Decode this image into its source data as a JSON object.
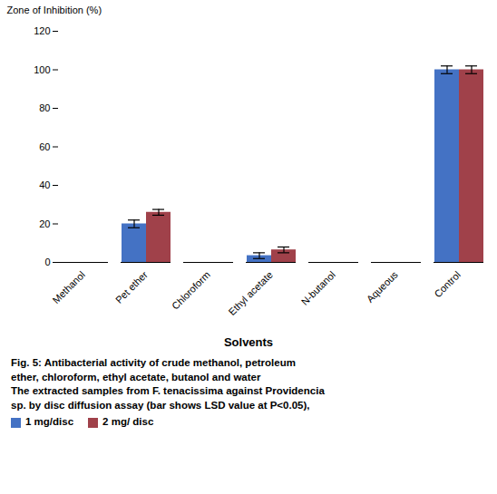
{
  "chart_data": {
    "type": "bar",
    "categories": [
      "Methanol",
      "Pet ether",
      "Chloroform",
      "Ethyl acetate",
      "N-butanol",
      "Aqueous",
      "Control"
    ],
    "series": [
      {
        "name": "1 mg/disc",
        "color": "#4472C4",
        "values": [
          0,
          20,
          0,
          3.5,
          0,
          0,
          100
        ],
        "errors": [
          0,
          2.0,
          0,
          1.5,
          0,
          0,
          2.0
        ]
      },
      {
        "name": "2 mg/ disc",
        "color": "#A0414A",
        "values": [
          0,
          26,
          0,
          6.5,
          0,
          0,
          100
        ],
        "errors": [
          0,
          1.5,
          0,
          1.5,
          0,
          0,
          2.0
        ]
      }
    ],
    "xlabel": "Solvents",
    "ylabel": "Zone of Inhibition (%)",
    "ylim": [
      0,
      120
    ],
    "yticks": [
      0,
      20,
      40,
      60,
      80,
      100,
      120
    ],
    "grid": false,
    "caption": [
      "Fig. 5: Antibacterial activity of crude methanol, petroleum",
      "ether, chloroform, ethyl acetate, butanol and water",
      "The extracted samples from F. tenacissima against Providencia",
      "sp. by disc diffusion assay (bar shows LSD value at P<0.05),"
    ]
  }
}
